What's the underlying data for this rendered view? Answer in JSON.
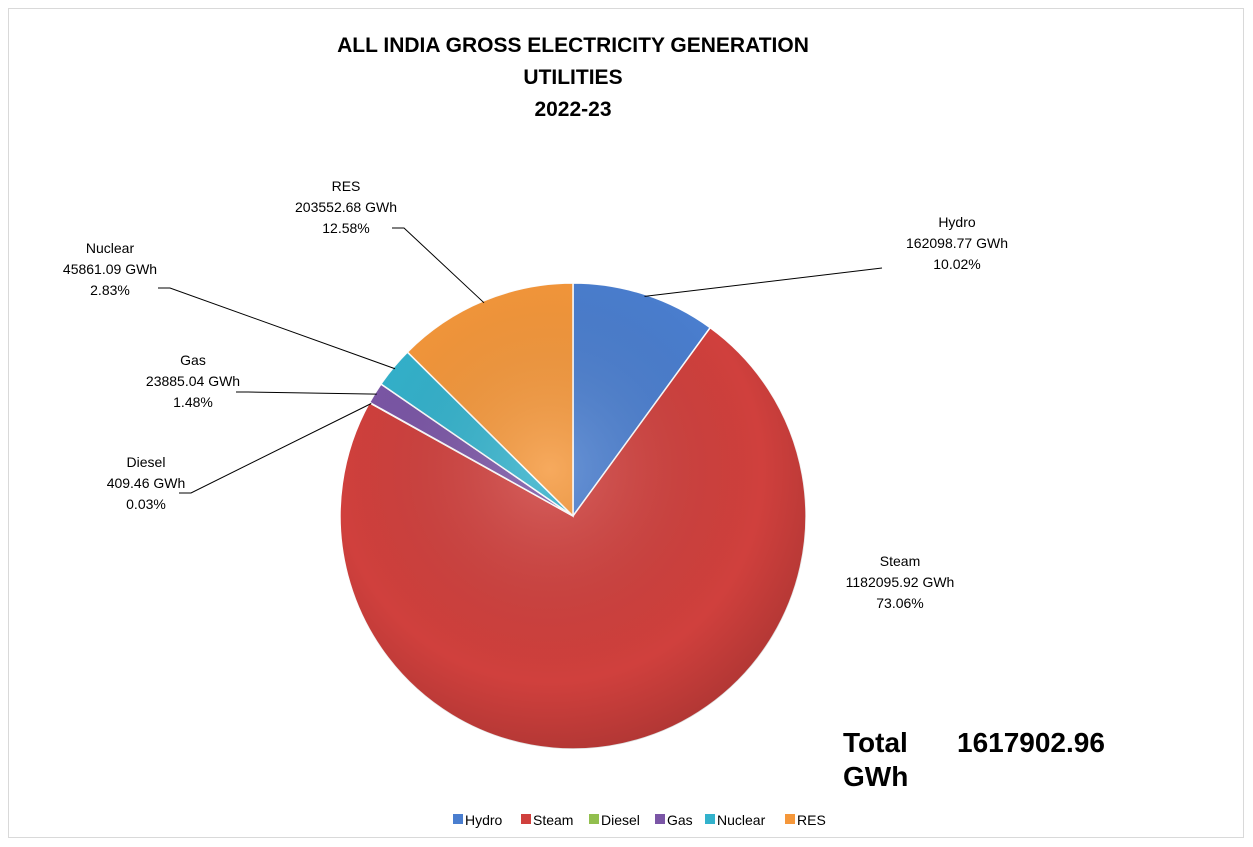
{
  "chart_data": {
    "type": "pie",
    "title": [
      "ALL INDIA GROSS ELECTRICITY GENERATION",
      "UTILITIES",
      "2022-23"
    ],
    "slices": [
      {
        "name": "Hydro",
        "value": 162098.77,
        "unit": "GWh",
        "value_label": "162098.77 GWh",
        "percent_label": "10.02%",
        "color": "#4a7ecf"
      },
      {
        "name": "Steam",
        "value": 1182095.92,
        "unit": "GWh",
        "value_label": "1182095.92 GWh",
        "percent_label": "73.06%",
        "color": "#d0403d"
      },
      {
        "name": "Diesel",
        "value": 409.46,
        "unit": "GWh",
        "value_label": "409.46 GWh",
        "percent_label": "0.03%",
        "color": "#92bf4e"
      },
      {
        "name": "Gas",
        "value": 23885.04,
        "unit": "GWh",
        "value_label": "23885.04 GWh",
        "percent_label": "1.48%",
        "color": "#7b56a6"
      },
      {
        "name": "Nuclear",
        "value": 45861.09,
        "unit": "GWh",
        "value_label": "45861.09 GWh",
        "percent_label": "2.83%",
        "color": "#33b2cc"
      },
      {
        "name": "RES",
        "value": 203552.68,
        "unit": "GWh",
        "value_label": "203552.68 GWh",
        "percent_label": "12.58%",
        "color": "#f5973a"
      }
    ],
    "legend_position": "bottom",
    "total": {
      "label_word": "Total",
      "value": "1617902.96",
      "unit": "GWh"
    }
  }
}
